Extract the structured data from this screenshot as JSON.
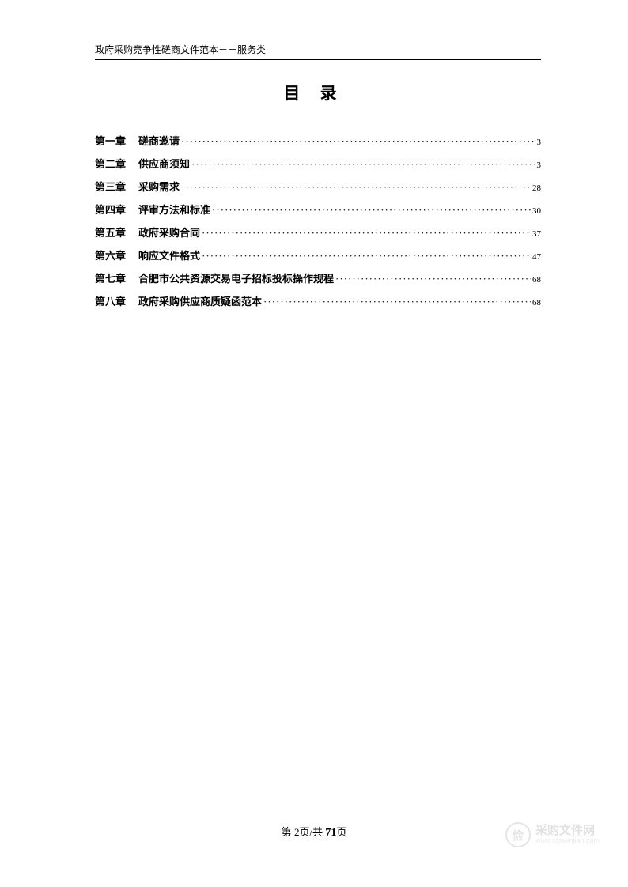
{
  "header": {
    "text": "政府采购竞争性磋商文件范本－－服务类"
  },
  "title": "目 录",
  "toc": [
    {
      "chapter": "第一章",
      "label": "磋商邀请",
      "page": "3"
    },
    {
      "chapter": "第二章",
      "label": "供应商须知",
      "page": "3"
    },
    {
      "chapter": "第三章",
      "label": "采购需求",
      "page": "28"
    },
    {
      "chapter": "第四章",
      "label": "评审方法和标准",
      "page": "30"
    },
    {
      "chapter": "第五章",
      "label": "政府采购合同",
      "page": "37"
    },
    {
      "chapter": "第六章",
      "label": "响应文件格式",
      "page": "47"
    },
    {
      "chapter": "第七章",
      "label": "合肥市公共资源交易电子招标投标操作规程",
      "page": "68"
    },
    {
      "chapter": "第八章",
      "label": "政府采购供应商质疑函范本",
      "page": "68"
    }
  ],
  "footer": {
    "prefix": "第 ",
    "current": "2",
    "mid": "页/共 ",
    "total": "71",
    "suffix": "页"
  },
  "watermark": {
    "badge": "俭",
    "cn": "采购文件网",
    "url": "www.cgwenjian.com"
  },
  "style": {
    "text_color": "#000000",
    "background_color": "#ffffff",
    "header_fontsize": 12,
    "title_fontsize": 21,
    "toc_fontsize": 13,
    "toc_pagenum_fontsize": 11,
    "footer_fontsize": 13,
    "toc_line_spacing": 10,
    "watermark_opacity": 0.25,
    "watermark_color": "#999999"
  }
}
